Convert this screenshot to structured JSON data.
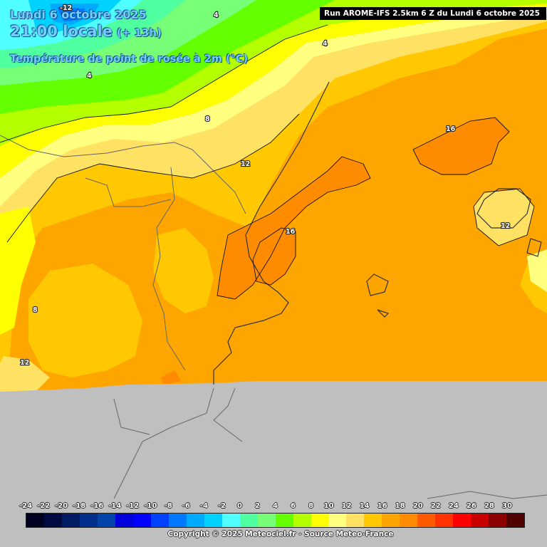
{
  "header": {
    "date": "Lundi 6 octobre 2025",
    "local_time": "21:00 locale",
    "offset": "(+ 13h)",
    "parameter": "Température de point de rosée à 2m (°C)"
  },
  "run_banner": "Run AROME-IFS 2.5km 6 Z du Lundi 6 octobre 2025",
  "contour_labels": [
    "-12",
    "4",
    "4",
    "4",
    "8",
    "12",
    "16",
    "16",
    "12",
    "8",
    "12"
  ],
  "legend": {
    "ticks": [
      "-24",
      "-22",
      "-20",
      "-18",
      "-16",
      "-14",
      "-12",
      "-10",
      "-8",
      "-6",
      "-4",
      "-2",
      "0",
      "2",
      "4",
      "6",
      "8",
      "10",
      "12",
      "14",
      "16",
      "18",
      "20",
      "22",
      "24",
      "26",
      "28",
      "30"
    ],
    "colors": [
      "#000020",
      "#000a40",
      "#001b64",
      "#00308c",
      "#0044aa",
      "#0000dc",
      "#0000ff",
      "#0040ff",
      "#0078ff",
      "#00aaff",
      "#00d2ff",
      "#50ffff",
      "#50ffa0",
      "#78ff78",
      "#64ff00",
      "#b4ff00",
      "#ffff00",
      "#ffff80",
      "#ffe164",
      "#ffc800",
      "#ffa500",
      "#ff8c00",
      "#ff5a00",
      "#ff3200",
      "#ff0000",
      "#c80000",
      "#8c0000",
      "#500000"
    ]
  },
  "copyright": "Copyright © 2025 Meteociel.fr - Source Meteo-France"
}
